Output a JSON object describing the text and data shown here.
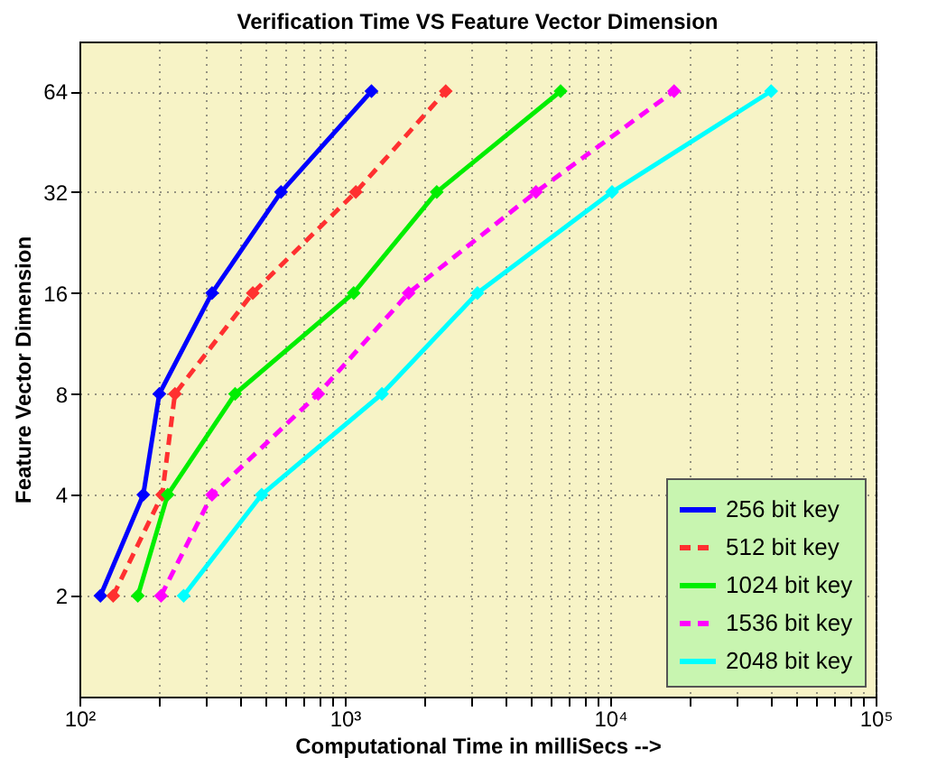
{
  "chart_data": {
    "type": "line",
    "title": "Verification Time VS Feature Vector Dimension",
    "xlabel": "Computational Time in milliSecs -->",
    "ylabel": "Feature Vector Dimension",
    "log": "xy",
    "xlim": [
      100,
      100000
    ],
    "ylim": [
      1,
      90
    ],
    "xticks": [
      {
        "value": 100,
        "label": "10²"
      },
      {
        "value": 200,
        "label": null
      },
      {
        "value": 300,
        "label": null
      },
      {
        "value": 400,
        "label": null
      },
      {
        "value": 500,
        "label": null
      },
      {
        "value": 600,
        "label": null
      },
      {
        "value": 700,
        "label": null
      },
      {
        "value": 800,
        "label": null
      },
      {
        "value": 900,
        "label": null
      },
      {
        "value": 1000,
        "label": "10³"
      },
      {
        "value": 2000,
        "label": null
      },
      {
        "value": 3000,
        "label": null
      },
      {
        "value": 4000,
        "label": null
      },
      {
        "value": 5000,
        "label": null
      },
      {
        "value": 6000,
        "label": null
      },
      {
        "value": 7000,
        "label": null
      },
      {
        "value": 8000,
        "label": null
      },
      {
        "value": 9000,
        "label": null
      },
      {
        "value": 10000,
        "label": "10⁴"
      },
      {
        "value": 20000,
        "label": null
      },
      {
        "value": 30000,
        "label": null
      },
      {
        "value": 40000,
        "label": null
      },
      {
        "value": 50000,
        "label": null
      },
      {
        "value": 60000,
        "label": null
      },
      {
        "value": 70000,
        "label": null
      },
      {
        "value": 80000,
        "label": null
      },
      {
        "value": 90000,
        "label": null
      },
      {
        "value": 100000,
        "label": "10⁵"
      }
    ],
    "yticks": [
      2,
      4,
      8,
      16,
      32,
      64
    ],
    "grid": true,
    "legend": "bottom right",
    "marker": "diamond",
    "series": [
      {
        "name": "256 bit key",
        "color": "#0000ff",
        "line_style": "solid",
        "x": [
          120,
          174,
          200,
          316,
          575,
          1260
        ],
        "values": [
          2,
          4,
          8,
          16,
          32,
          64
        ]
      },
      {
        "name": "512 bit key",
        "color": "#ff3030",
        "line_style": "dashed",
        "x": [
          134,
          205,
          229,
          450,
          1100,
          2400
        ],
        "values": [
          2,
          4,
          8,
          16,
          32,
          64
        ]
      },
      {
        "name": "1024 bit key",
        "color": "#00ee00",
        "line_style": "solid",
        "x": [
          166,
          215,
          386,
          1080,
          2220,
          6500
        ],
        "values": [
          2,
          4,
          8,
          16,
          32,
          64
        ]
      },
      {
        "name": "1536 bit key",
        "color": "#ff00ff",
        "line_style": "dashed",
        "x": [
          203,
          316,
          794,
          1740,
          5250,
          17400
        ],
        "values": [
          2,
          4,
          8,
          16,
          32,
          64
        ]
      },
      {
        "name": "2048 bit key",
        "color": "#00ffff",
        "line_style": "solid",
        "x": [
          247,
          486,
          1380,
          3160,
          10160,
          40400
        ],
        "values": [
          2,
          4,
          8,
          16,
          32,
          64
        ]
      }
    ]
  }
}
